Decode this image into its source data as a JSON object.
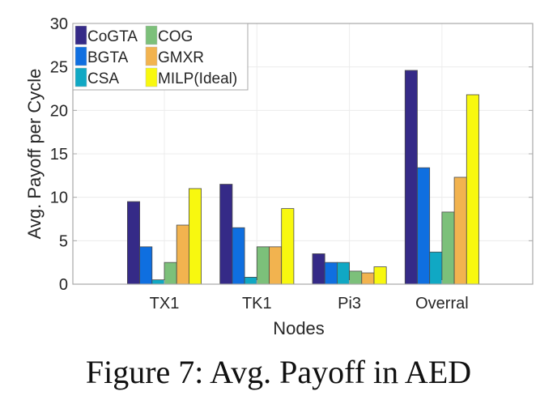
{
  "chart_data": {
    "type": "bar",
    "title": "",
    "xlabel": "Nodes",
    "ylabel": "Avg. Payoff per Cycle",
    "ylim": [
      0,
      30
    ],
    "yticks": [
      0,
      5,
      10,
      15,
      20,
      25,
      30
    ],
    "categories": [
      "TX1",
      "TK1",
      "Pi3",
      "Overral"
    ],
    "grid": true,
    "legend_position": "top-left",
    "series": [
      {
        "name": "CoGTA",
        "color": "#352a87",
        "values": [
          9.5,
          11.5,
          3.5,
          24.6
        ]
      },
      {
        "name": "BGTA",
        "color": "#0f6fe0",
        "values": [
          4.3,
          6.5,
          2.5,
          13.4
        ]
      },
      {
        "name": "CSA",
        "color": "#10a8c4",
        "values": [
          0.5,
          0.8,
          2.5,
          3.7
        ]
      },
      {
        "name": "COG",
        "color": "#7cc07a",
        "values": [
          2.5,
          4.3,
          1.5,
          8.3
        ]
      },
      {
        "name": "GMXR",
        "color": "#f2b34f",
        "values": [
          6.8,
          4.3,
          1.3,
          12.3
        ]
      },
      {
        "name": "MILP(Ideal)",
        "color": "#f8f80f",
        "values": [
          11.0,
          8.7,
          2.0,
          21.8
        ]
      }
    ]
  },
  "caption": "Figure 7: Avg. Payoff in AED"
}
